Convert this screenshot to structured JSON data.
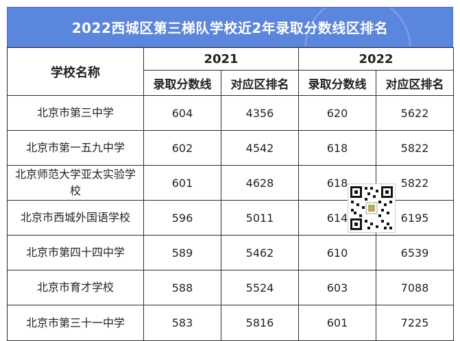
{
  "title": "2022西城区第三梯队学校近2年录取分数线区排名",
  "header": {
    "school_col": "学校名称",
    "year1": "2021",
    "year2": "2022",
    "score_col": "录取分数线",
    "rank_col": "对应区排名"
  },
  "rows": [
    {
      "school": "北京市第三中学",
      "score2021": "604",
      "rank2021": "4356",
      "score2022": "620",
      "rank2022": "5622"
    },
    {
      "school": "北京市第一五九中学",
      "score2021": "602",
      "rank2021": "4542",
      "score2022": "618",
      "rank2022": "5822"
    },
    {
      "school": "北京师范大学亚太实验学校",
      "score2021": "601",
      "rank2021": "4628",
      "score2022": "618",
      "rank2022": "5822"
    },
    {
      "school": "北京市西城外国语学校",
      "score2021": "596",
      "rank2021": "5011",
      "score2022": "614",
      "rank2022": "6195"
    },
    {
      "school": "北京市第四十四中学",
      "score2021": "589",
      "rank2021": "5462",
      "score2022": "610",
      "rank2022": "6539"
    },
    {
      "school": "北京市育才学校",
      "score2021": "588",
      "rank2021": "5524",
      "score2022": "603",
      "rank2022": "7088"
    },
    {
      "school": "北京市第三十一中学",
      "score2021": "583",
      "rank2021": "5816",
      "score2022": "601",
      "rank2022": "7225"
    }
  ],
  "colors": {
    "banner": "#5b86de",
    "border": "#2b2b2b",
    "text": "#222222"
  },
  "overlay_icon": "qr-code-icon"
}
